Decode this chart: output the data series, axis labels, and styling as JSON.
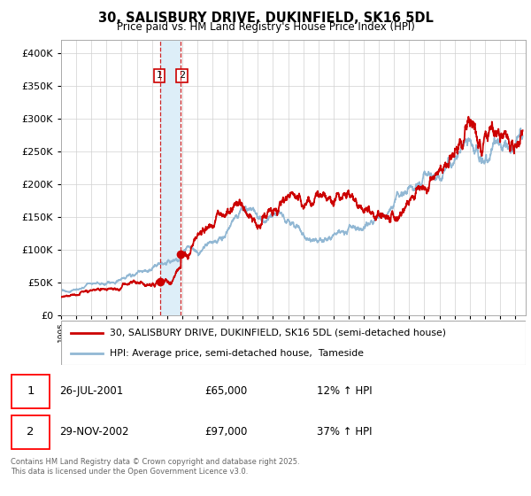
{
  "title": "30, SALISBURY DRIVE, DUKINFIELD, SK16 5DL",
  "subtitle": "Price paid vs. HM Land Registry's House Price Index (HPI)",
  "legend_line1": "30, SALISBURY DRIVE, DUKINFIELD, SK16 5DL (semi-detached house)",
  "legend_line2": "HPI: Average price, semi-detached house,  Tameside",
  "transaction1_date": "26-JUL-2001",
  "transaction1_price": "£65,000",
  "transaction1_hpi": "12% ↑ HPI",
  "transaction2_date": "29-NOV-2002",
  "transaction2_price": "£97,000",
  "transaction2_hpi": "37% ↑ HPI",
  "footer": "Contains HM Land Registry data © Crown copyright and database right 2025.\nThis data is licensed under the Open Government Licence v3.0.",
  "hpi_color": "#92b8d4",
  "price_color": "#cc0000",
  "highlight_color": "#ddeef8",
  "ylim": [
    0,
    420000
  ],
  "yticks": [
    0,
    50000,
    100000,
    150000,
    200000,
    250000,
    300000,
    350000,
    400000
  ],
  "transaction1_year": 2001.57,
  "transaction2_year": 2002.92
}
